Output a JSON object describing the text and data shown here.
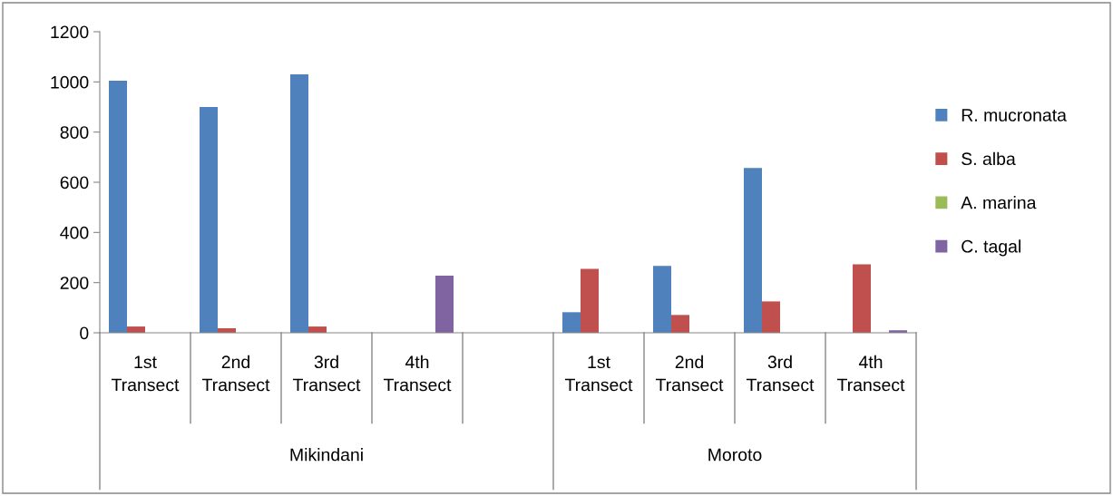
{
  "chart_data": {
    "type": "bar",
    "categories": [
      "1st Transect",
      "2nd Transect",
      "3rd Transect",
      "4th Transect",
      null,
      "1st Transect",
      "2nd Transect",
      "3rd Transect",
      "4th Transect"
    ],
    "series": [
      {
        "name": "R. mucronata",
        "color": "#4f81bd",
        "values": [
          1005,
          900,
          1030,
          0,
          null,
          82,
          267,
          657,
          0
        ]
      },
      {
        "name": "S. alba",
        "color": "#c0504d",
        "values": [
          25,
          18,
          25,
          0,
          null,
          255,
          71,
          125,
          273
        ]
      },
      {
        "name": "A. marina",
        "color": "#9bbb59",
        "values": [
          0,
          0,
          0,
          0,
          null,
          0,
          0,
          0,
          0
        ]
      },
      {
        "name": "C. tagal",
        "color": "#8064a2",
        "values": [
          0,
          0,
          0,
          228,
          null,
          0,
          0,
          0,
          10
        ]
      }
    ],
    "annotations": [
      "Mikindani",
      "Moroto"
    ],
    "ylim": [
      0,
      1200
    ],
    "yticks": [
      0,
      200,
      400,
      600,
      800,
      1000,
      1200
    ],
    "grid": false,
    "legend": "right"
  }
}
